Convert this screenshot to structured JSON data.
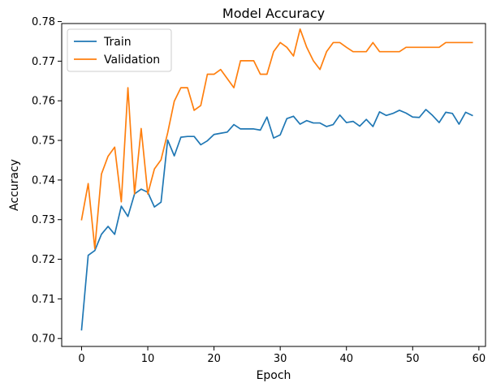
{
  "chart_data": {
    "type": "line",
    "title": "Model Accuracy",
    "xlabel": "Epoch",
    "ylabel": "Accuracy",
    "xlim": [
      -3,
      61
    ],
    "ylim": [
      0.698,
      0.7795
    ],
    "xticks": [
      0,
      10,
      20,
      30,
      40,
      50,
      60
    ],
    "yticks": [
      0.7,
      0.71,
      0.72,
      0.73,
      0.74,
      0.75,
      0.76,
      0.77,
      0.78
    ],
    "ytick_labels": [
      "0.70",
      "0.71",
      "0.72",
      "0.73",
      "0.74",
      "0.75",
      "0.76",
      "0.77",
      "0.78"
    ],
    "grid": false,
    "legend_position": "top-left",
    "x": [
      0,
      1,
      2,
      3,
      4,
      5,
      6,
      7,
      8,
      9,
      10,
      11,
      12,
      13,
      14,
      15,
      16,
      17,
      18,
      19,
      20,
      21,
      22,
      23,
      24,
      25,
      26,
      27,
      28,
      29,
      30,
      31,
      32,
      33,
      34,
      35,
      36,
      37,
      38,
      39,
      40,
      41,
      42,
      43,
      44,
      45,
      46,
      47,
      48,
      49,
      50,
      51,
      52,
      53,
      54,
      55,
      56,
      57,
      58,
      59
    ],
    "series": [
      {
        "name": "Train",
        "color": "#1f77b4",
        "values": [
          0.7022,
          0.721,
          0.7222,
          0.7263,
          0.7283,
          0.7263,
          0.7334,
          0.7308,
          0.7365,
          0.7377,
          0.7369,
          0.7332,
          0.7344,
          0.7501,
          0.7461,
          0.7508,
          0.751,
          0.751,
          0.7489,
          0.7499,
          0.7515,
          0.7518,
          0.7521,
          0.754,
          0.7529,
          0.7529,
          0.7529,
          0.7526,
          0.7559,
          0.7506,
          0.7514,
          0.7555,
          0.7561,
          0.7541,
          0.755,
          0.7544,
          0.7544,
          0.7535,
          0.754,
          0.7564,
          0.7545,
          0.7548,
          0.7536,
          0.7553,
          0.7535,
          0.7572,
          0.7563,
          0.7568,
          0.7576,
          0.7569,
          0.7559,
          0.7558,
          0.7578,
          0.7563,
          0.7545,
          0.7571,
          0.7568,
          0.7541,
          0.7571,
          0.7563
        ]
      },
      {
        "name": "Validation",
        "color": "#ff7f0e",
        "values": [
          0.73,
          0.7391,
          0.7227,
          0.7415,
          0.746,
          0.7483,
          0.7345,
          0.7633,
          0.7365,
          0.753,
          0.7365,
          0.7428,
          0.7451,
          0.7519,
          0.7599,
          0.7633,
          0.7633,
          0.7576,
          0.7588,
          0.7667,
          0.7667,
          0.7679,
          0.7656,
          0.7633,
          0.7701,
          0.7701,
          0.7701,
          0.7667,
          0.7667,
          0.7724,
          0.7747,
          0.7735,
          0.7713,
          0.7781,
          0.7735,
          0.7701,
          0.7679,
          0.7724,
          0.7747,
          0.7747,
          0.7735,
          0.7724,
          0.7724,
          0.7724,
          0.7747,
          0.7724,
          0.7724,
          0.7724,
          0.7724,
          0.7735,
          0.7735,
          0.7735,
          0.7735,
          0.7735,
          0.7735,
          0.7747,
          0.7747,
          0.7747,
          0.7747,
          0.7747
        ]
      }
    ]
  }
}
